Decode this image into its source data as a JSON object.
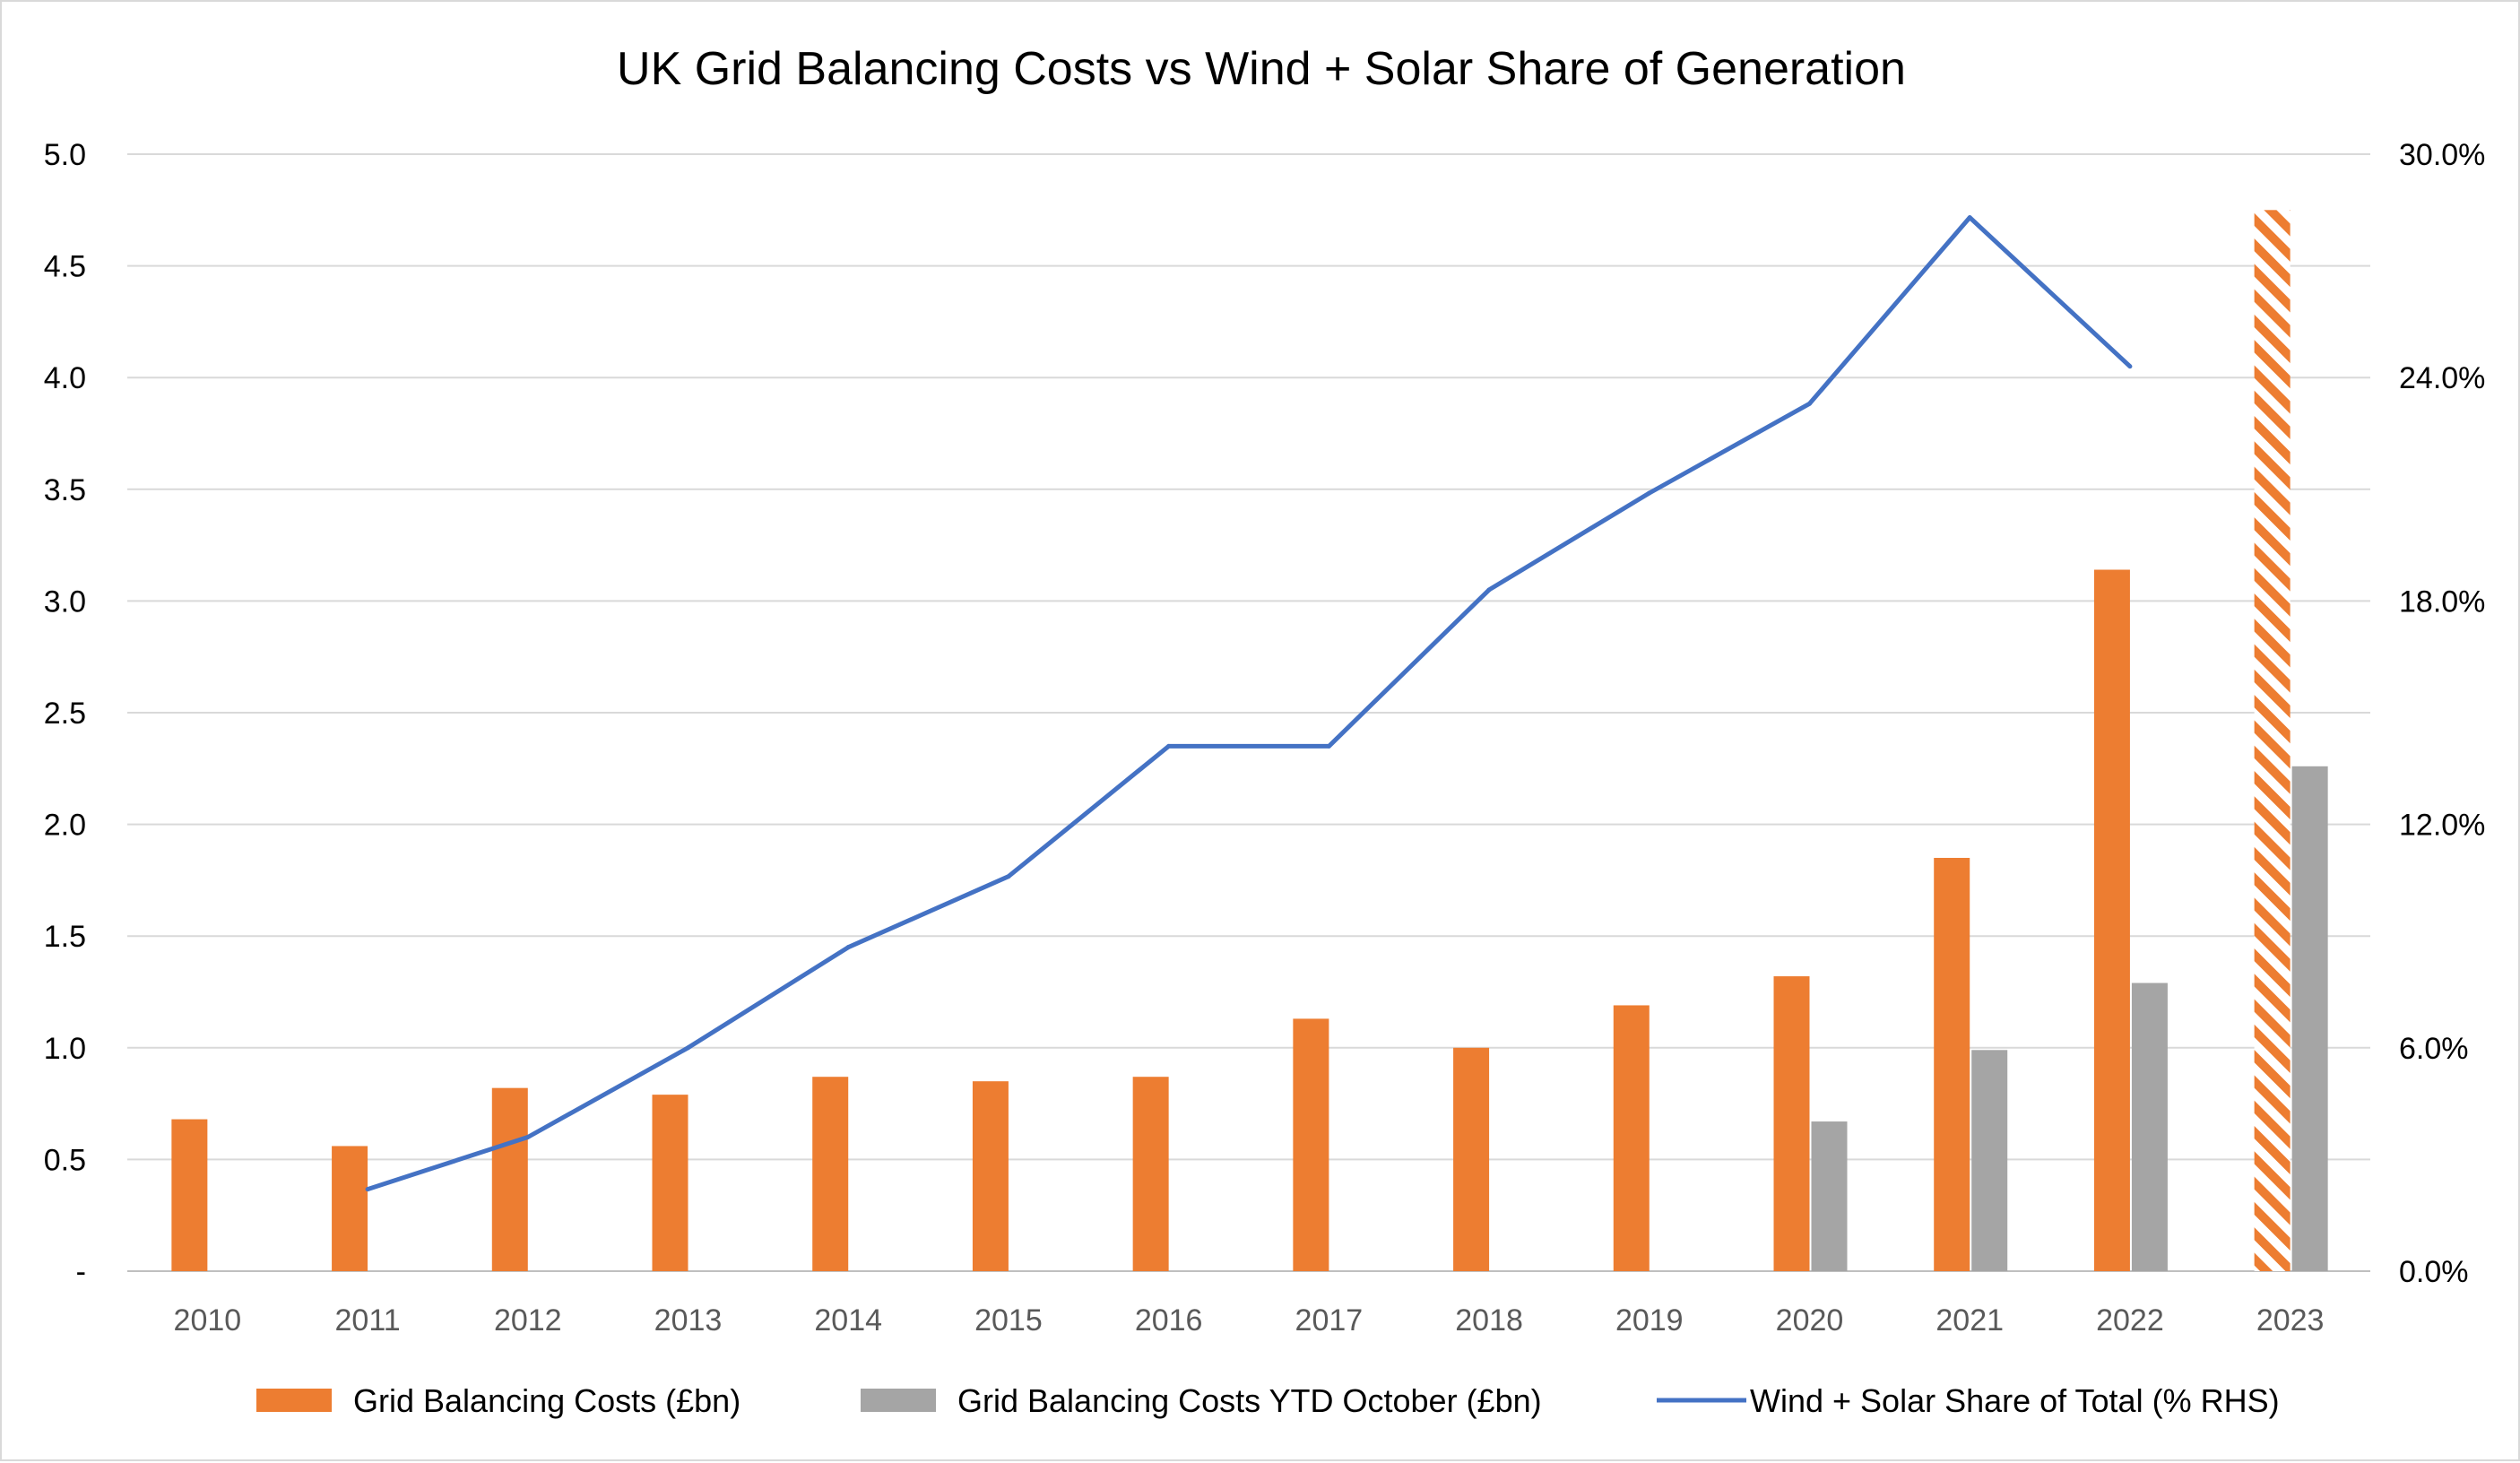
{
  "chart_data": {
    "type": "bar",
    "title": "UK Grid Balancing Costs vs Wind + Solar Share of Generation",
    "categories": [
      "2010",
      "2011",
      "2012",
      "2013",
      "2014",
      "2015",
      "2016",
      "2017",
      "2018",
      "2019",
      "2020",
      "2021",
      "2022",
      "2023"
    ],
    "y_left": {
      "range": [
        0,
        5
      ],
      "ticks": [
        0,
        0.5,
        1,
        1.5,
        2,
        2.5,
        3,
        3.5,
        4,
        4.5,
        5
      ],
      "tick_labels": [
        "-",
        "0.5",
        "1.0",
        "1.5",
        "2.0",
        "2.5",
        "3.0",
        "3.5",
        "4.0",
        "4.5",
        "5.0"
      ]
    },
    "y_right": {
      "range": [
        0,
        30
      ],
      "ticks": [
        0,
        6,
        12,
        18,
        24,
        30
      ],
      "tick_labels": [
        "0.0%",
        "6.0%",
        "12.0%",
        "18.0%",
        "24.0%",
        "30.0%"
      ]
    },
    "series": [
      {
        "name": "Grid Balancing Costs (£bn)",
        "type": "bar",
        "axis": "left",
        "color": "#ed7d31",
        "values": [
          0.68,
          0.56,
          0.82,
          0.79,
          0.87,
          0.85,
          0.87,
          1.13,
          1.0,
          1.19,
          1.32,
          1.85,
          3.14,
          4.75
        ],
        "hatched": [
          false,
          false,
          false,
          false,
          false,
          false,
          false,
          false,
          false,
          false,
          false,
          false,
          false,
          true
        ]
      },
      {
        "name": "Grid Balancing Costs YTD October (£bn)",
        "type": "bar",
        "axis": "left",
        "color": "#a5a5a5",
        "values": [
          null,
          null,
          null,
          null,
          null,
          null,
          null,
          null,
          null,
          null,
          0.67,
          0.99,
          1.29,
          2.26
        ]
      },
      {
        "name": "Wind + Solar Share of Total (% RHS)",
        "type": "line",
        "axis": "right",
        "color": "#4472c4",
        "values": [
          null,
          2.2,
          3.6,
          6.0,
          8.7,
          10.6,
          14.1,
          14.1,
          18.3,
          20.9,
          23.3,
          28.3,
          24.3,
          null
        ]
      }
    ],
    "legend": "bottom",
    "grid": true
  }
}
